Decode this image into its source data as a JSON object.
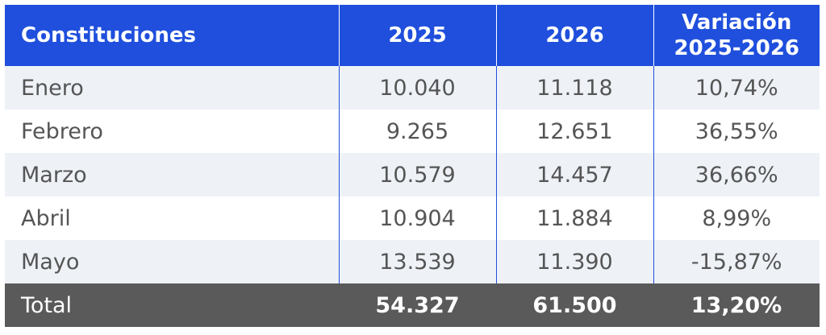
{
  "table": {
    "header": [
      "Constituciones",
      "2025",
      "2026",
      "Variación 2025-2026"
    ],
    "rows": [
      [
        "Enero",
        "10.040",
        "11.118",
        "10,74%"
      ],
      [
        "Febrero",
        "9.265",
        "12.651",
        "36,55%"
      ],
      [
        "Marzo",
        "10.579",
        "14.457",
        "36,66%"
      ],
      [
        "Abril",
        "10.904",
        "11.884",
        "8,99%"
      ],
      [
        "Mayo",
        "13.539",
        "11.390",
        "-15,87%"
      ]
    ],
    "total": [
      "Total",
      "54.327",
      "61.500",
      "13,20%"
    ]
  }
}
